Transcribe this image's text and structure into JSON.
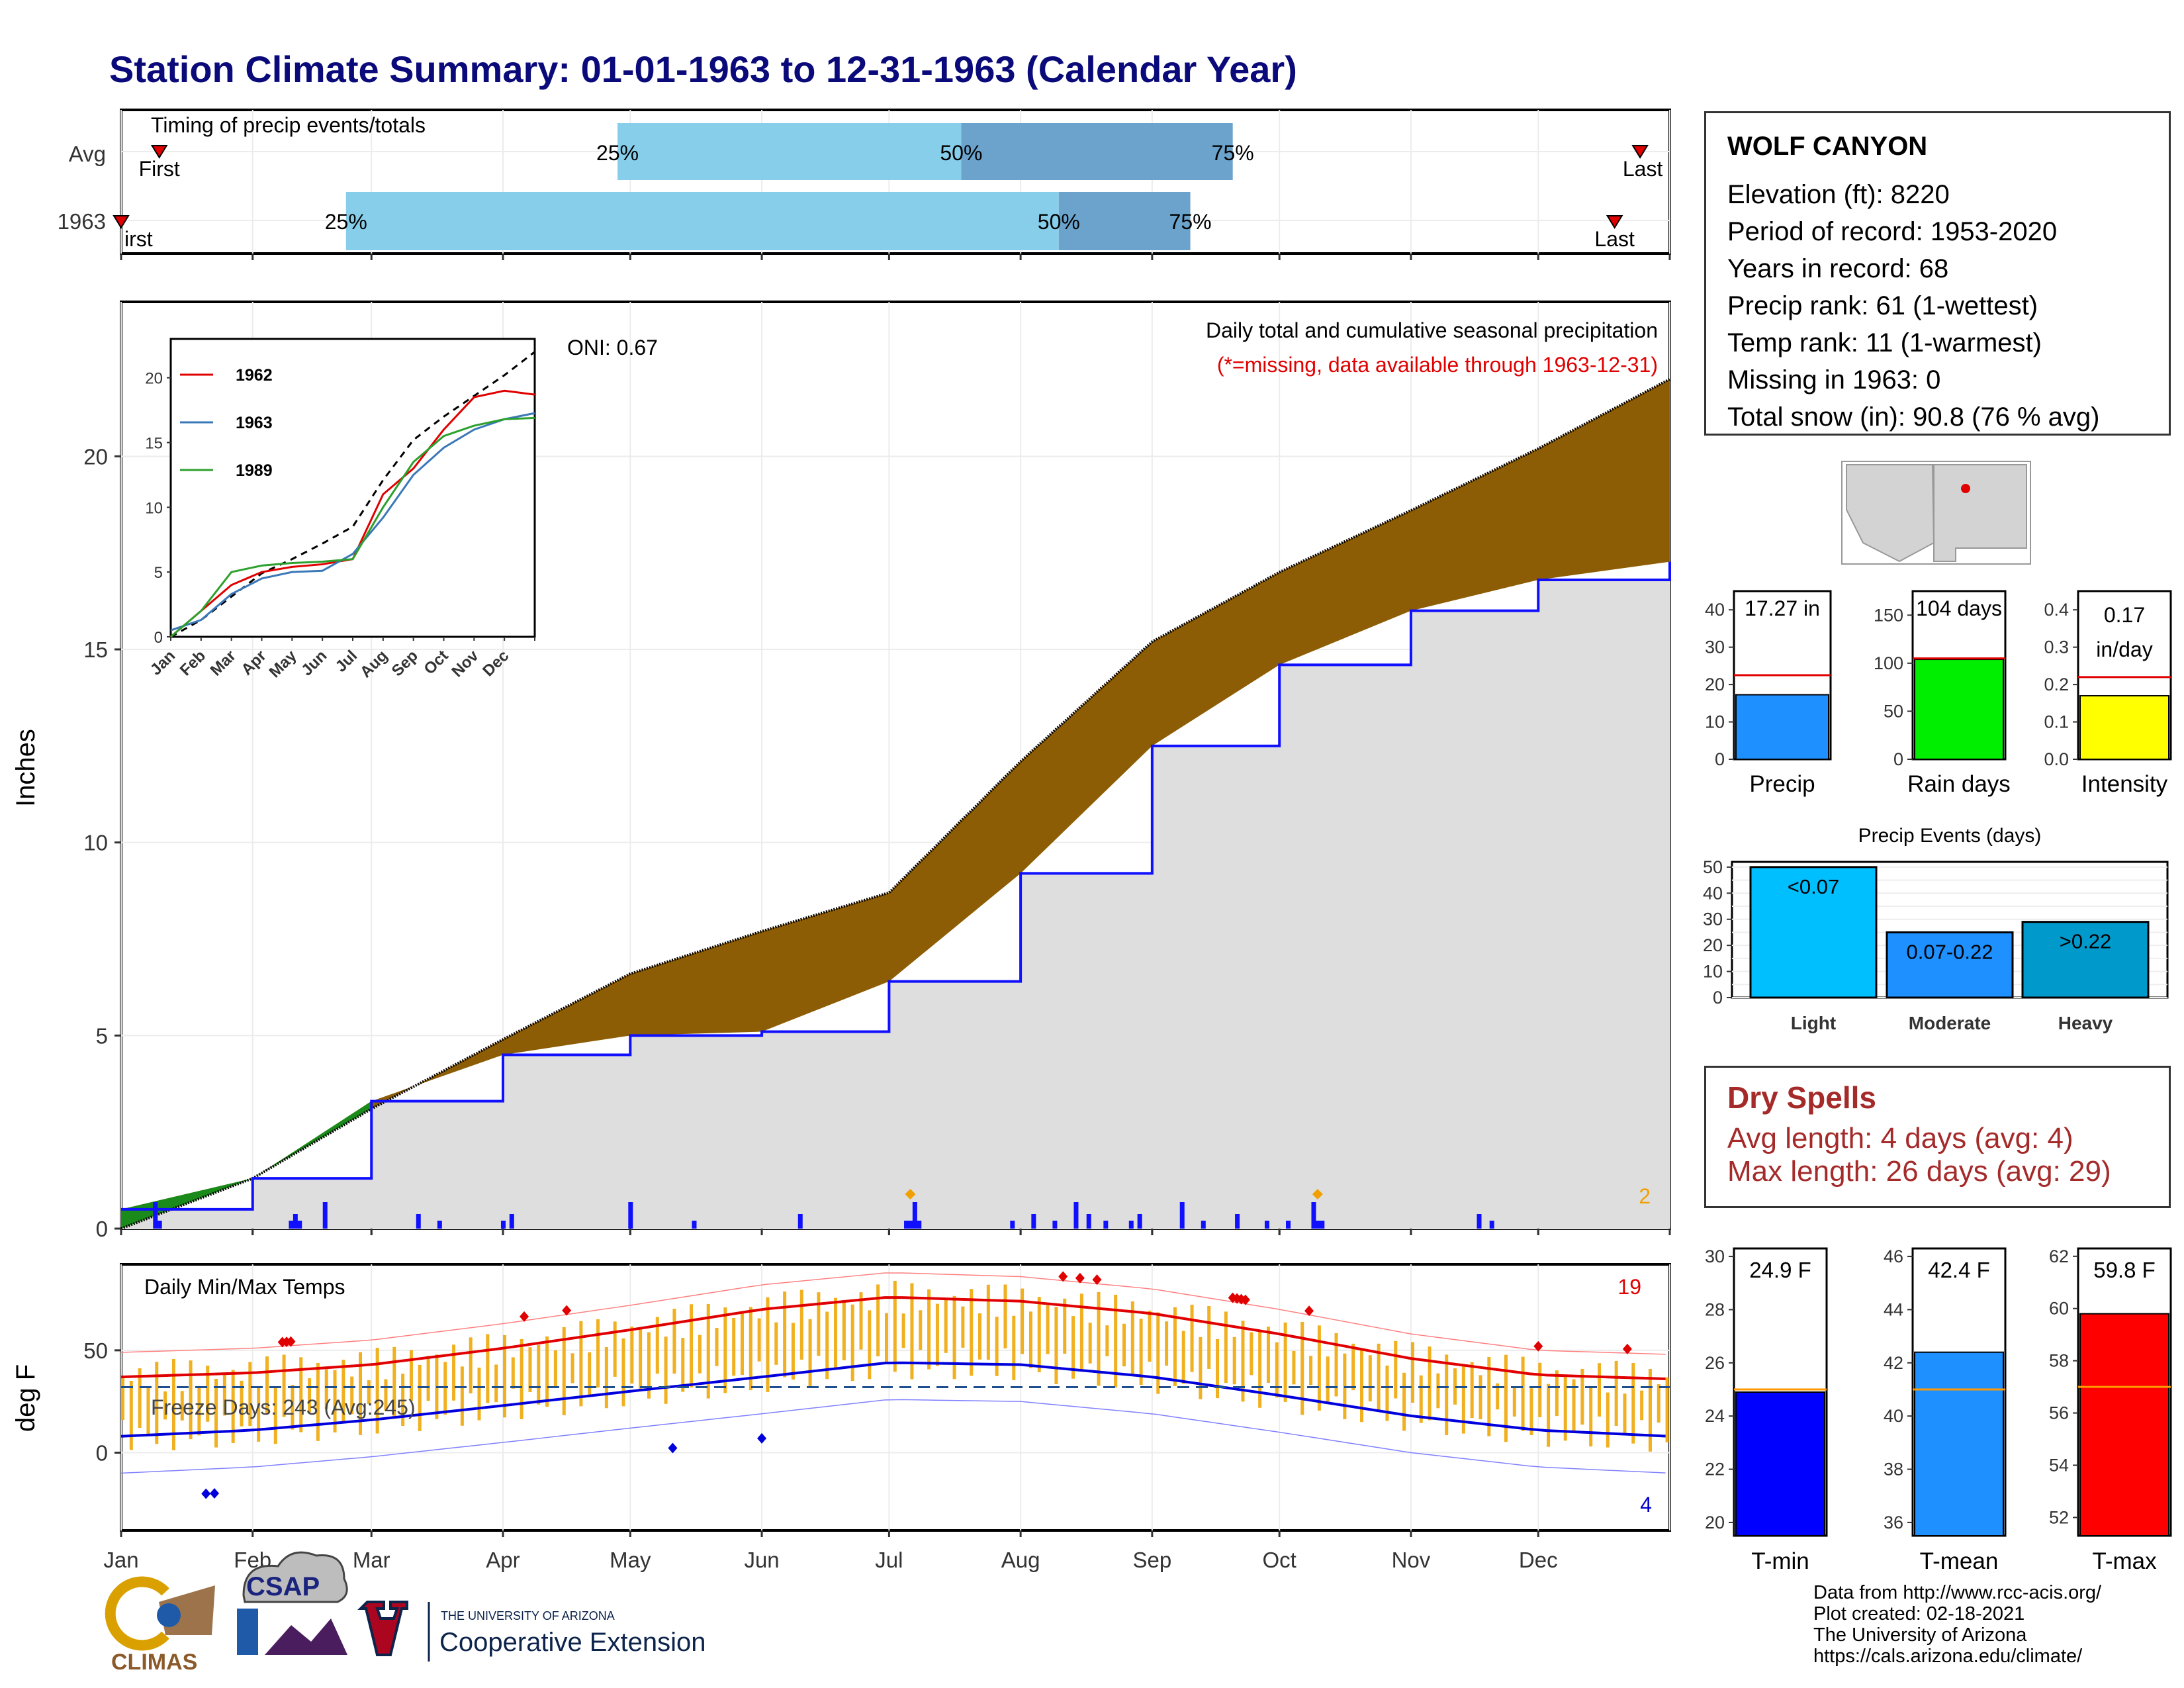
{
  "title": "Station Climate Summary: 01-01-1963 to 12-31-1963 (Calendar Year)",
  "months": [
    "Jan",
    "Feb",
    "Mar",
    "Apr",
    "May",
    "Jun",
    "Jul",
    "Aug",
    "Sep",
    "Oct",
    "Nov",
    "Dec"
  ],
  "timing_panel": {
    "title": "Timing of precip events/totals",
    "row_labels": [
      "Avg",
      "1963"
    ],
    "first_label": "First",
    "first_label_1963": "irst",
    "last_label": "Last",
    "last_label_avg": "Last",
    "p25": "25%",
    "p50": "50%",
    "p75": "75%"
  },
  "precip_panel": {
    "ylabel": "Inches",
    "title_line1": "Daily total and cumulative seasonal precipitation",
    "title_line2": "(*=missing, data available through 1963-12-31)",
    "oni": "ONI: 0.67",
    "count_label": "2",
    "yticks": [
      "0",
      "5",
      "10",
      "15",
      "20"
    ]
  },
  "inset": {
    "legend": [
      "1962",
      "1963",
      "1989"
    ],
    "yticks": [
      "0",
      "5",
      "10",
      "15",
      "20"
    ],
    "xticks": [
      "Jan",
      "Feb",
      "Mar",
      "Apr",
      "May",
      "Jun",
      "Jul",
      "Aug",
      "Sep",
      "Oct",
      "Nov",
      "Dec"
    ]
  },
  "temp_panel": {
    "ylabel": "deg F",
    "title": "Daily Min/Max Temps",
    "freeze_days": "Freeze Days: 243 (Avg:245)",
    "max_count": "19",
    "min_count": "4",
    "yticks": [
      "0",
      "50"
    ]
  },
  "station": {
    "name": "WOLF CANYON",
    "rows": [
      "Elevation (ft): 8220",
      "Period of record: 1953-2020",
      "Years in record: 68",
      "Precip rank: 61 (1-wettest)",
      "Temp rank: 11 (1-warmest)",
      "Missing in 1963: 0",
      "Total snow (in): 90.8 (76 % avg)"
    ]
  },
  "mini_bars": {
    "precip": {
      "label": "Precip",
      "value_text": "17.27 in",
      "yticks": [
        "0",
        "10",
        "20",
        "30",
        "40"
      ]
    },
    "rain_days": {
      "label": "Rain days",
      "value_text": "104 days",
      "yticks": [
        "0",
        "50",
        "100",
        "150"
      ]
    },
    "intensity": {
      "label": "Intensity",
      "value_text_1": "0.17",
      "value_text_2": "in/day",
      "yticks": [
        "0.0",
        "0.1",
        "0.2",
        "0.3",
        "0.4"
      ]
    }
  },
  "events": {
    "title": "Precip Events (days)",
    "categories": [
      "Light",
      "Moderate",
      "Heavy"
    ],
    "bar_labels": [
      "<0.07",
      "0.07-0.22",
      ">0.22"
    ],
    "yticks": [
      "0",
      "10",
      "20",
      "30",
      "40",
      "50"
    ]
  },
  "dry_spells": {
    "title": "Dry Spells",
    "avg": "Avg length: 4 days (avg: 4)",
    "max": "Max length: 26 days (avg: 29)"
  },
  "temp_bars": {
    "tmin": {
      "label": "T-min",
      "value_text": "24.9 F",
      "yticks": [
        "20",
        "22",
        "24",
        "26",
        "28",
        "30"
      ]
    },
    "tmean": {
      "label": "T-mean",
      "value_text": "42.4 F",
      "yticks": [
        "36",
        "38",
        "40",
        "42",
        "44",
        "46"
      ]
    },
    "tmax": {
      "label": "T-max",
      "value_text": "59.8 F",
      "yticks": [
        "52",
        "54",
        "56",
        "58",
        "60",
        "62"
      ]
    }
  },
  "credits": [
    "Data from http://www.rcc-acis.org/",
    "Plot created: 02-18-2021",
    "The University of Arizona",
    "https://cals.arizona.edu/climate/"
  ],
  "logos": {
    "climas": "CLIMAS",
    "csap": "CSAP",
    "ua_small": "THE UNIVERSITY OF ARIZONA",
    "ua_big": "Cooperative Extension"
  },
  "chart_data": [
    {
      "type": "bar",
      "name": "timing",
      "rows": [
        "Avg",
        "1963"
      ],
      "avg": {
        "first": "Jan 10",
        "p25": "Apr 28",
        "p50": "Jul 18",
        "p75": "Sep 20",
        "last": "Dec 25"
      },
      "y1963": {
        "first": "Jan 1",
        "p25": "Feb 23",
        "p50": "Aug 10",
        "p75": "Sep 10",
        "last": "Dec 19"
      }
    },
    {
      "type": "area",
      "name": "cumulative_precip",
      "ylabel": "Inches",
      "ylim": [
        0,
        24
      ],
      "x": [
        "Jan 1",
        "Feb 1",
        "Mar 1",
        "Apr 1",
        "May 1",
        "Jun 1",
        "Jul 1",
        "Aug 1",
        "Sep 1",
        "Oct 1",
        "Nov 1",
        "Dec 1",
        "Dec 31"
      ],
      "series": [
        {
          "name": "Avg",
          "values": [
            0,
            1.3,
            3.1,
            4.9,
            6.6,
            7.7,
            8.7,
            12.1,
            15.2,
            17.0,
            18.6,
            20.2,
            22.0
          ]
        },
        {
          "name": "1963",
          "values": [
            0.5,
            1.3,
            3.3,
            4.5,
            5.0,
            5.1,
            6.4,
            9.2,
            12.5,
            14.6,
            16.0,
            16.8,
            17.27
          ]
        }
      ]
    },
    {
      "type": "line",
      "name": "inset_cumulative",
      "ylim": [
        0,
        23
      ],
      "x": [
        "Jan",
        "Feb",
        "Mar",
        "Apr",
        "May",
        "Jun",
        "Jul",
        "Aug",
        "Sep",
        "Oct",
        "Nov",
        "Dec",
        "Dec31"
      ],
      "series": [
        {
          "name": "Avg",
          "values": [
            0,
            1.3,
            3.1,
            4.9,
            6.0,
            7.2,
            8.5,
            12.1,
            15.2,
            17.0,
            18.6,
            20.2,
            22.0
          ]
        },
        {
          "name": "1962",
          "values": [
            0,
            2.0,
            4.0,
            5.0,
            5.4,
            5.6,
            6.0,
            11.0,
            13.0,
            16.0,
            18.5,
            19.0,
            18.7
          ]
        },
        {
          "name": "1963",
          "values": [
            0.5,
            1.3,
            3.3,
            4.5,
            5.0,
            5.1,
            6.4,
            9.2,
            12.5,
            14.6,
            16.0,
            16.8,
            17.27
          ]
        },
        {
          "name": "1989",
          "values": [
            0,
            2.0,
            5.0,
            5.5,
            5.7,
            5.8,
            6.0,
            10.0,
            13.5,
            15.5,
            16.3,
            16.8,
            16.9
          ]
        }
      ]
    },
    {
      "type": "line",
      "name": "daily_temps",
      "ylabel": "deg F",
      "ylim": [
        -38,
        92
      ],
      "x": [
        "Jan",
        "Feb",
        "Mar",
        "Apr",
        "May",
        "Jun",
        "Jul",
        "Aug",
        "Sep",
        "Oct",
        "Nov",
        "Dec",
        "Dec31"
      ],
      "series": [
        {
          "name": "Avg max",
          "values": [
            37,
            39,
            43,
            51,
            60,
            70,
            76,
            74,
            68,
            58,
            46,
            38,
            36
          ]
        },
        {
          "name": "Avg min",
          "values": [
            8,
            11,
            16,
            23,
            30,
            37,
            44,
            43,
            37,
            28,
            18,
            11,
            8
          ]
        }
      ],
      "freeze_threshold": 32
    },
    {
      "type": "bar",
      "name": "annual_precip",
      "value": 17.27,
      "avg": 22.5,
      "ylim": [
        0,
        45
      ]
    },
    {
      "type": "bar",
      "name": "rain_days",
      "value": 104,
      "avg": 105,
      "ylim": [
        0,
        175
      ]
    },
    {
      "type": "bar",
      "name": "intensity",
      "value": 0.17,
      "avg": 0.22,
      "ylim": [
        0,
        0.45
      ]
    },
    {
      "type": "bar",
      "name": "precip_events",
      "categories": [
        "Light",
        "Moderate",
        "Heavy"
      ],
      "values": [
        50,
        25,
        29
      ],
      "ylim": [
        0,
        52
      ]
    },
    {
      "type": "bar",
      "name": "temp_summary",
      "categories": [
        "T-min",
        "T-mean",
        "T-max"
      ],
      "values": [
        24.9,
        42.4,
        59.8
      ],
      "avgs": [
        25.0,
        41.0,
        57.0
      ],
      "ylims": [
        [
          19.5,
          30.3
        ],
        [
          35.5,
          46.3
        ],
        [
          51.3,
          62.3
        ]
      ]
    }
  ]
}
